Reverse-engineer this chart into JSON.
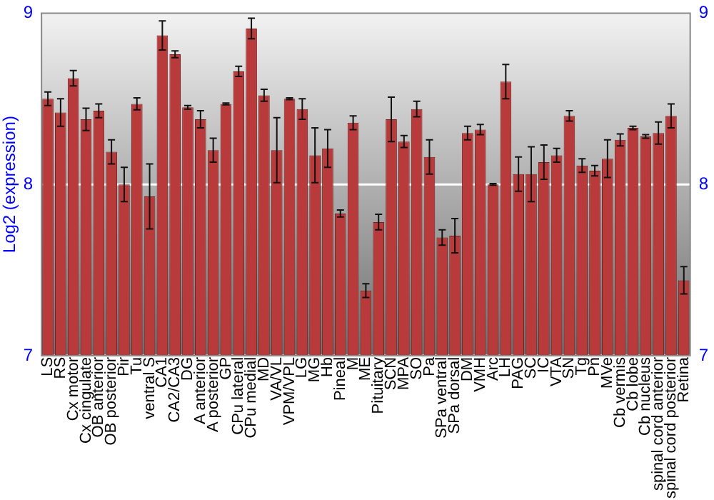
{
  "chart_data": {
    "type": "bar",
    "ylabel": "Log2 (expression)",
    "categories": [
      "LS",
      "RS",
      "Cx motor",
      "Cx cingulate",
      "OB anterior",
      "OB posterior",
      "Pir",
      "Tu",
      "ventral S",
      "CA1",
      "CA2/CA3",
      "DG",
      "A anterior",
      "A posterior",
      "GP",
      "CPu lateral",
      "CPu medial",
      "MD",
      "VA/VL",
      "VPM/VPL",
      "LG",
      "MG",
      "Hb",
      "Pineal",
      "M",
      "ME",
      "Pituitary",
      "SCN",
      "MPA",
      "SO",
      "Pa",
      "SPa ventral",
      "SPa dorsal",
      "DM",
      "VMH",
      "Arc",
      "LH",
      "PAG",
      "SC",
      "IC",
      "VTA",
      "SN",
      "Tg",
      "Pn",
      "MVe",
      "Cb vermis",
      "Cb lobe",
      "Cb nucleus",
      "spinal cord anterior",
      "spinal cord posterior",
      "Retina"
    ],
    "series": [
      {
        "color": "#b83a3a",
        "values": [
          8.5,
          8.42,
          8.62,
          8.38,
          8.43,
          8.19,
          8.0,
          8.47,
          7.93,
          8.87,
          8.76,
          8.45,
          8.38,
          8.2,
          8.47,
          8.66,
          8.91,
          8.52,
          8.2,
          8.5,
          8.44,
          8.17,
          8.21,
          7.83,
          8.36,
          7.38,
          7.78,
          8.38,
          8.25,
          8.44,
          8.16,
          7.69,
          7.7,
          8.3,
          8.32,
          8.0,
          8.6,
          8.06,
          8.06,
          8.13,
          8.17,
          8.4,
          8.11,
          8.08,
          8.15,
          8.26,
          8.33,
          8.28,
          8.3,
          8.4,
          7.44
        ],
        "errors": [
          0.04,
          0.08,
          0.045,
          0.065,
          0.04,
          0.07,
          0.1,
          0.035,
          0.19,
          0.085,
          0.02,
          0.01,
          0.05,
          0.07,
          0.005,
          0.03,
          0.06,
          0.035,
          0.19,
          0.005,
          0.06,
          0.16,
          0.11,
          0.02,
          0.04,
          0.04,
          0.045,
          0.13,
          0.035,
          0.045,
          0.1,
          0.045,
          0.1,
          0.04,
          0.03,
          0.005,
          0.1,
          0.1,
          0.16,
          0.1,
          0.04,
          0.03,
          0.04,
          0.03,
          0.11,
          0.035,
          0.01,
          0.01,
          0.065,
          0.07,
          0.08
        ]
      }
    ],
    "ylim": [
      7,
      9
    ],
    "yticks": [
      7,
      8,
      9
    ],
    "y2lim": [
      7,
      9
    ],
    "y2ticks": [
      7,
      8,
      9
    ],
    "grid": "y"
  }
}
